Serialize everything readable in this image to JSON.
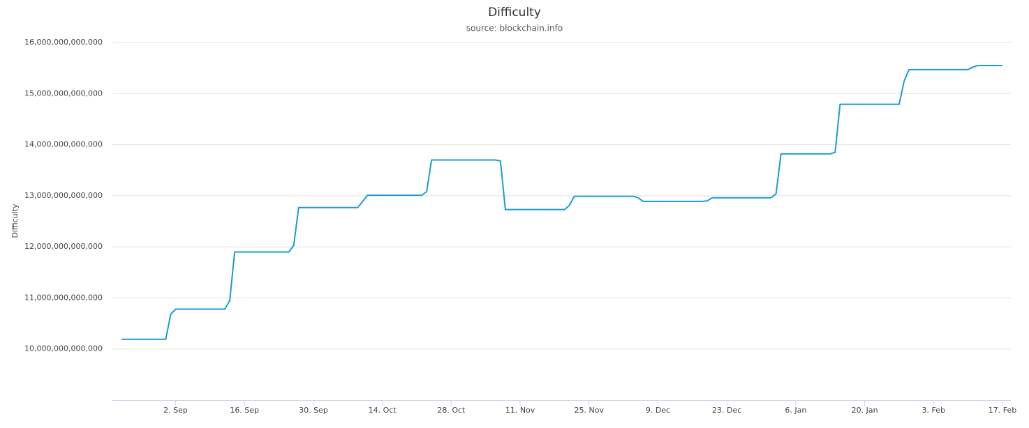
{
  "chart_data": {
    "type": "line",
    "title": "Difficulty",
    "subtitle": "source: blockchain.info",
    "y_label": "Difficulty",
    "x": [
      "22. Aug",
      "31. Aug",
      "1. Sep",
      "2. Sep",
      "12. Sep",
      "13. Sep",
      "14. Sep",
      "25. Sep",
      "26. Sep",
      "27. Sep",
      "9. Oct",
      "10. Oct",
      "11. Oct",
      "22. Oct",
      "23. Oct",
      "24. Oct",
      "6. Nov",
      "7. Nov",
      "8. Nov",
      "20. Nov",
      "21. Nov",
      "22. Nov",
      "4. Dec",
      "5. Dec",
      "6. Dec",
      "18. Dec",
      "19. Dec",
      "20. Dec",
      "1. Jan",
      "2. Jan",
      "3. Jan",
      "13. Jan",
      "14. Jan",
      "15. Jan",
      "27. Jan",
      "28. Jan",
      "29. Jan",
      "10. Feb",
      "11. Feb",
      "12. Feb",
      "17. Feb"
    ],
    "series": [
      {
        "color": "#1f9ad0",
        "values": [
          10190000000000,
          10190000000000,
          10680000000000,
          10780000000000,
          10780000000000,
          10950000000000,
          11900000000000,
          11900000000000,
          12030000000000,
          12770000000000,
          12770000000000,
          12890000000000,
          13010000000000,
          13010000000000,
          13080000000000,
          13700000000000,
          13700000000000,
          13680000000000,
          12730000000000,
          12730000000000,
          12810000000000,
          12990000000000,
          12990000000000,
          12960000000000,
          12890000000000,
          12890000000000,
          12900000000000,
          12960000000000,
          12960000000000,
          13040000000000,
          13820000000000,
          13820000000000,
          13850000000000,
          14790000000000,
          14790000000000,
          15240000000000,
          15470000000000,
          15470000000000,
          15520000000000,
          15550000000000,
          15550000000000
        ]
      }
    ],
    "xticks": [
      "2. Sep",
      "16. Sep",
      "30. Sep",
      "14. Oct",
      "28. Oct",
      "11. Nov",
      "25. Nov",
      "9. Dec",
      "23. Dec",
      "6. Jan",
      "20. Jan",
      "3. Feb",
      "17. Feb"
    ],
    "ylim": [
      9000000000000,
      16000000000000
    ],
    "yticks": [
      {
        "value": 10000000000000,
        "label": "10,000,000,000,000"
      },
      {
        "value": 11000000000000,
        "label": "11,000,000,000,000"
      },
      {
        "value": 12000000000000,
        "label": "12,000,000,000,000"
      },
      {
        "value": 13000000000000,
        "label": "13,000,000,000,000"
      },
      {
        "value": 14000000000000,
        "label": "14,000,000,000,000"
      },
      {
        "value": 15000000000000,
        "label": "15,000,000,000,000"
      },
      {
        "value": 16000000000000,
        "label": "16,000,000,000,000"
      }
    ],
    "grid": true
  }
}
